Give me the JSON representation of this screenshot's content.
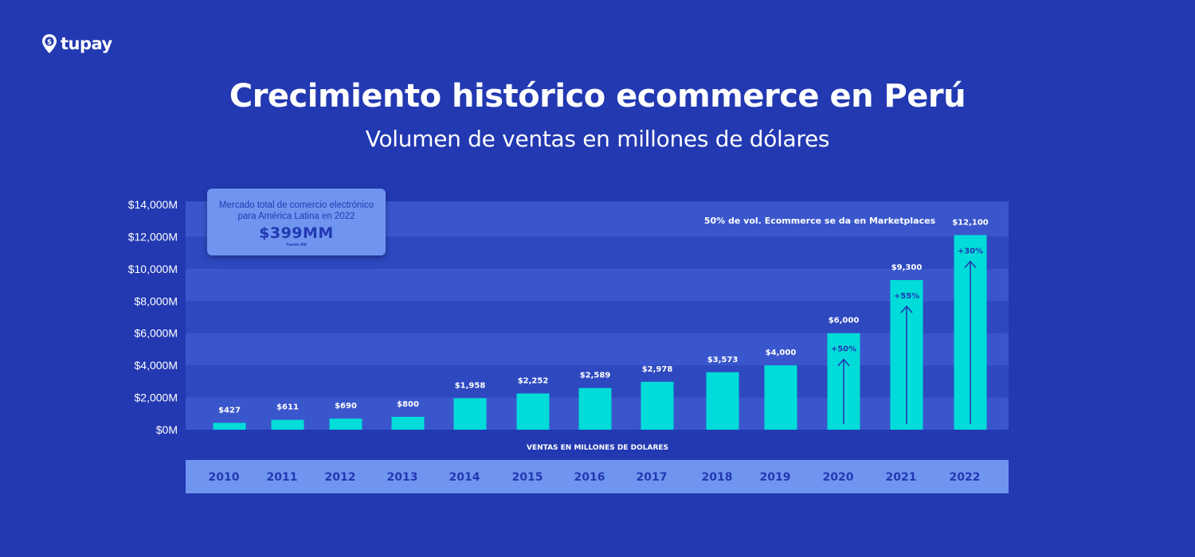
{
  "brand": {
    "name": "tupay",
    "icon": "dollar-pin-icon"
  },
  "header": {
    "title": "Crecimiento histórico ecommerce en Perú",
    "subtitle": "Volumen de ventas en millones de dólares"
  },
  "callout": {
    "text": "Mercado total de comercio electrónico para América Latina en 2022",
    "value": "$399MM",
    "source": "Fuente AM"
  },
  "colors": {
    "background": "#2239b2",
    "band_light": "#3a56cc",
    "band_dark": "#2e49c0",
    "bar": "#00dcd9",
    "arrow": "#2239b2",
    "year_band": "#6f95f0",
    "year_text": "#2239b2"
  },
  "chart_data": {
    "type": "bar",
    "title": "Crecimiento histórico ecommerce en Perú",
    "subtitle": "Volumen de ventas en millones de dólares",
    "xlabel": "VENTAS EN MILLONES DE DOLARES",
    "ylabel": "",
    "ylim": [
      0,
      14000
    ],
    "y_ticks": [
      0,
      2000,
      4000,
      6000,
      8000,
      10000,
      12000,
      14000
    ],
    "y_tick_labels": [
      "$0M",
      "$2,000M",
      "$4,000M",
      "$6,000M",
      "$8,000M",
      "$10,000M",
      "$12,000M",
      "$14,000M"
    ],
    "categories": [
      "2010",
      "2011",
      "2012",
      "2013",
      "2014",
      "2015",
      "2016",
      "2017",
      "2018",
      "2019",
      "2020",
      "2021",
      "2022"
    ],
    "values": [
      427,
      611,
      690,
      800,
      1958,
      2252,
      2589,
      2978,
      3573,
      4000,
      6000,
      9300,
      12100
    ],
    "value_labels": [
      "$427",
      "$611",
      "$690",
      "$800",
      "$1,958",
      "$2,252",
      "$2,589",
      "$2,978",
      "$3,573",
      "$4,000",
      "$6,000",
      "$9,300",
      "$12,100"
    ],
    "growth_annotations": [
      {
        "category": "2020",
        "label": "+50%"
      },
      {
        "category": "2021",
        "label": "+55%"
      },
      {
        "category": "2022",
        "label": "+30%"
      }
    ],
    "band_annotation": "50% de vol. Ecommerce se da en Marketplaces",
    "grid": false,
    "legend": "none"
  }
}
